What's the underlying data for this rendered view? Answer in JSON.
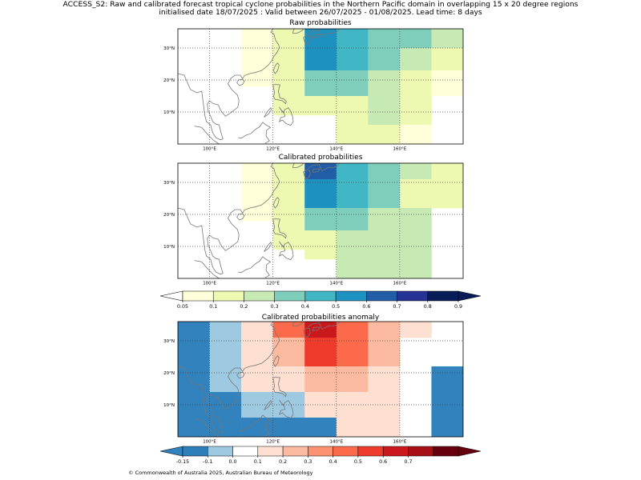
{
  "header": {
    "line1": "ACCESS_S2: Raw and calibrated forecast tropical cyclone probabilities in the Northern Pacific domain in overlapping 15 x 20 degree regions",
    "line2": "initialised date 18/07/2025 :  Valid between 26/07/2025 - 01/08/2025. Lead time: 8 days"
  },
  "footer": {
    "copyright": "© Commonwealth of Australia 2025, Australian Bureau of Meteorology"
  },
  "map_axes": {
    "lon_ticks": [
      "100°E",
      "120°E",
      "140°E",
      "160°E"
    ],
    "lon_values": [
      100,
      120,
      140,
      160
    ],
    "lat_ticks": [
      "10°N",
      "20°N",
      "30°N"
    ],
    "lat_values": [
      10,
      20,
      30
    ],
    "lon_range": [
      90,
      180
    ],
    "lat_range": [
      0,
      36
    ],
    "grid": "dotted"
  },
  "colors": {
    "prob": [
      "#ffffd9",
      "#edf8b1",
      "#c7e9b4",
      "#7fcdbb",
      "#41b6c4",
      "#1d91c0",
      "#225ea8",
      "#253494",
      "#081d58"
    ],
    "anom": [
      "#2c7fb8",
      "#9ecae1",
      "#ffffff",
      "#fee0d2",
      "#fcbba1",
      "#fc9272",
      "#fb6a4a",
      "#ef3b2c",
      "#cb181d",
      "#a50f15",
      "#67000d"
    ],
    "coast": "#777777"
  },
  "panels": [
    {
      "id": "raw",
      "title": "Raw probabilities",
      "scale": "prob",
      "cells": [
        {
          "lon": [
            110,
            120
          ],
          "lat": [
            18,
            36
          ],
          "v": 0.07
        },
        {
          "lon": [
            120,
            130
          ],
          "lat": [
            9,
            36
          ],
          "v": 0.15
        },
        {
          "lon": [
            130,
            140
          ],
          "lat": [
            23,
            36
          ],
          "v": 0.55
        },
        {
          "lon": [
            130,
            140
          ],
          "lat": [
            15,
            23
          ],
          "v": 0.35
        },
        {
          "lon": [
            130,
            140
          ],
          "lat": [
            9,
            15
          ],
          "v": 0.15
        },
        {
          "lon": [
            140,
            150
          ],
          "lat": [
            23,
            36
          ],
          "v": 0.45
        },
        {
          "lon": [
            140,
            150
          ],
          "lat": [
            15,
            23
          ],
          "v": 0.35
        },
        {
          "lon": [
            140,
            150
          ],
          "lat": [
            0,
            15
          ],
          "v": 0.15
        },
        {
          "lon": [
            150,
            160
          ],
          "lat": [
            23,
            36
          ],
          "v": 0.35
        },
        {
          "lon": [
            150,
            160
          ],
          "lat": [
            15,
            23
          ],
          "v": 0.25
        },
        {
          "lon": [
            150,
            160
          ],
          "lat": [
            6,
            15
          ],
          "v": 0.25
        },
        {
          "lon": [
            150,
            160
          ],
          "lat": [
            0,
            6
          ],
          "v": 0.15
        },
        {
          "lon": [
            160,
            170
          ],
          "lat": [
            30,
            36
          ],
          "v": 0.35
        },
        {
          "lon": [
            160,
            170
          ],
          "lat": [
            23,
            30
          ],
          "v": 0.25
        },
        {
          "lon": [
            160,
            170
          ],
          "lat": [
            6,
            23
          ],
          "v": 0.15
        },
        {
          "lon": [
            160,
            170
          ],
          "lat": [
            0,
            6
          ],
          "v": 0.07
        },
        {
          "lon": [
            170,
            180
          ],
          "lat": [
            30,
            36
          ],
          "v": 0.25
        },
        {
          "lon": [
            170,
            180
          ],
          "lat": [
            23,
            30
          ],
          "v": 0.15
        },
        {
          "lon": [
            170,
            180
          ],
          "lat": [
            15,
            23
          ],
          "v": 0.07
        }
      ]
    },
    {
      "id": "cal",
      "title": "Calibrated probabilities",
      "scale": "prob",
      "cells": [
        {
          "lon": [
            110,
            120
          ],
          "lat": [
            18,
            36
          ],
          "v": 0.07
        },
        {
          "lon": [
            120,
            130
          ],
          "lat": [
            9,
            36
          ],
          "v": 0.15
        },
        {
          "lon": [
            130,
            140
          ],
          "lat": [
            31,
            36
          ],
          "v": 0.65
        },
        {
          "lon": [
            130,
            140
          ],
          "lat": [
            22,
            31
          ],
          "v": 0.55
        },
        {
          "lon": [
            130,
            140
          ],
          "lat": [
            15,
            22
          ],
          "v": 0.35
        },
        {
          "lon": [
            130,
            140
          ],
          "lat": [
            6,
            15
          ],
          "v": 0.15
        },
        {
          "lon": [
            140,
            150
          ],
          "lat": [
            22,
            36
          ],
          "v": 0.45
        },
        {
          "lon": [
            140,
            150
          ],
          "lat": [
            15,
            22
          ],
          "v": 0.35
        },
        {
          "lon": [
            140,
            150
          ],
          "lat": [
            0,
            15
          ],
          "v": 0.25
        },
        {
          "lon": [
            150,
            160
          ],
          "lat": [
            22,
            36
          ],
          "v": 0.35
        },
        {
          "lon": [
            150,
            160
          ],
          "lat": [
            0,
            22
          ],
          "v": 0.25
        },
        {
          "lon": [
            160,
            170
          ],
          "lat": [
            31,
            36
          ],
          "v": 0.25
        },
        {
          "lon": [
            160,
            170
          ],
          "lat": [
            22,
            31
          ],
          "v": 0.15
        },
        {
          "lon": [
            160,
            170
          ],
          "lat": [
            0,
            22
          ],
          "v": 0.25
        },
        {
          "lon": [
            170,
            180
          ],
          "lat": [
            22,
            36
          ],
          "v": 0.15
        }
      ]
    },
    {
      "id": "anom",
      "title": "Calibrated probabilities anomaly",
      "scale": "anom",
      "cells": [
        {
          "lon": [
            90,
            100
          ],
          "lat": [
            0,
            36
          ],
          "v": -0.2
        },
        {
          "lon": [
            100,
            110
          ],
          "lat": [
            14,
            36
          ],
          "v": -0.12
        },
        {
          "lon": [
            100,
            110
          ],
          "lat": [
            0,
            14
          ],
          "v": -0.2
        },
        {
          "lon": [
            110,
            120
          ],
          "lat": [
            22,
            36
          ],
          "v": 0.05
        },
        {
          "lon": [
            110,
            120
          ],
          "lat": [
            14,
            22
          ],
          "v": 0.05
        },
        {
          "lon": [
            110,
            120
          ],
          "lat": [
            6,
            14
          ],
          "v": -0.12
        },
        {
          "lon": [
            110,
            120
          ],
          "lat": [
            0,
            6
          ],
          "v": -0.2
        },
        {
          "lon": [
            120,
            130
          ],
          "lat": [
            31,
            36
          ],
          "v": 0.35
        },
        {
          "lon": [
            120,
            130
          ],
          "lat": [
            22,
            31
          ],
          "v": 0.15
        },
        {
          "lon": [
            120,
            130
          ],
          "lat": [
            14,
            22
          ],
          "v": 0.05
        },
        {
          "lon": [
            120,
            130
          ],
          "lat": [
            6,
            14
          ],
          "v": -0.12
        },
        {
          "lon": [
            120,
            130
          ],
          "lat": [
            0,
            6
          ],
          "v": -0.2
        },
        {
          "lon": [
            130,
            140
          ],
          "lat": [
            31,
            36
          ],
          "v": 0.55
        },
        {
          "lon": [
            130,
            140
          ],
          "lat": [
            22,
            31
          ],
          "v": 0.45
        },
        {
          "lon": [
            130,
            140
          ],
          "lat": [
            14,
            22
          ],
          "v": 0.15
        },
        {
          "lon": [
            130,
            140
          ],
          "lat": [
            6,
            14
          ],
          "v": 0.0
        },
        {
          "lon": [
            130,
            140
          ],
          "lat": [
            0,
            6
          ],
          "v": -0.2
        },
        {
          "lon": [
            140,
            150
          ],
          "lat": [
            31,
            36
          ],
          "v": 0.35
        },
        {
          "lon": [
            140,
            150
          ],
          "lat": [
            22,
            31
          ],
          "v": 0.35
        },
        {
          "lon": [
            140,
            150
          ],
          "lat": [
            14,
            22
          ],
          "v": 0.15
        },
        {
          "lon": [
            140,
            150
          ],
          "lat": [
            0,
            14
          ],
          "v": 0.05
        },
        {
          "lon": [
            150,
            160
          ],
          "lat": [
            22,
            36
          ],
          "v": 0.15
        },
        {
          "lon": [
            150,
            160
          ],
          "lat": [
            0,
            22
          ],
          "v": 0.05
        },
        {
          "lon": [
            160,
            170
          ],
          "lat": [
            31,
            36
          ],
          "v": 0.05
        },
        {
          "lon": [
            170,
            180
          ],
          "lat": [
            0,
            22
          ],
          "v": -0.2
        }
      ]
    }
  ],
  "colorbars": [
    {
      "id": "prob-colorbar",
      "colors_key": "prob",
      "ticks": [
        "0.05",
        "0.1",
        "0.2",
        "0.3",
        "0.4",
        "0.5",
        "0.6",
        "0.7",
        "0.8",
        "0.9"
      ],
      "under": "#ffffff",
      "over": "#081d58"
    },
    {
      "id": "anom-colorbar",
      "colors_key": "anom",
      "ticks": [
        "-0.15",
        "-0.1",
        "0.0",
        "0.1",
        "0.2",
        "0.3",
        "0.4",
        "0.5",
        "0.6",
        "0.7"
      ],
      "under": "#3182bd",
      "over": "#67000d"
    }
  ]
}
